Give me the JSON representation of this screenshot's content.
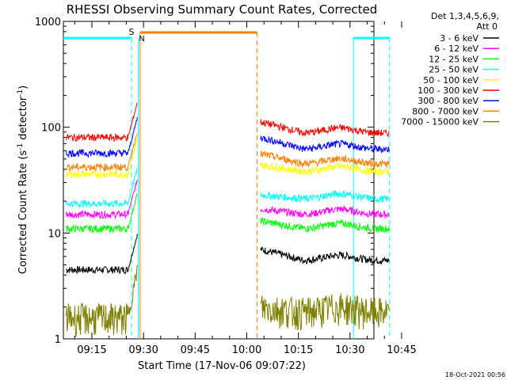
{
  "chart_data": {
    "type": "line",
    "title": "RHESSI Observing Summary Count Rates, Corrected",
    "xlabel": "Start Time (17-Nov-06 09:07:22)",
    "ylabel_main": "Corrected Count Rate (s",
    "ylabel_sup1": "-1",
    "ylabel_mid": " detector",
    "ylabel_sup2": "-1",
    "ylabel_end": ")",
    "y_scale": "log",
    "ylim": [
      1,
      1000
    ],
    "x_range_minutes": [
      7,
      100
    ],
    "x_ticks": [
      {
        "label": "09:15",
        "min": 15
      },
      {
        "label": "09:30",
        "min": 30
      },
      {
        "label": "09:45",
        "min": 45
      },
      {
        "label": "10:00",
        "min": 60
      },
      {
        "label": "10:15",
        "min": 75
      },
      {
        "label": "10:30",
        "min": 90
      },
      {
        "label": "10:45",
        "min": 105
      }
    ],
    "y_ticks": [
      {
        "label": "1",
        "value": 1
      },
      {
        "label": "10",
        "value": 10
      },
      {
        "label": "100",
        "value": 100
      },
      {
        "label": "1000",
        "value": 1000
      }
    ],
    "legend_header": [
      "Det 1,3,4,5,6,9,",
      "Att 0"
    ],
    "legend_position": "top-right",
    "series": [
      {
        "name": "3 - 6 keV",
        "color": "#000000",
        "pre": 4.5,
        "post": 5.5,
        "postStart": 7
      },
      {
        "name": "6 - 12 keV",
        "color": "#ff00ff",
        "pre": 15,
        "post": 15,
        "postStart": 17
      },
      {
        "name": "12 - 25 keV",
        "color": "#00ff00",
        "pre": 11,
        "post": 11,
        "postStart": 13
      },
      {
        "name": "25 - 50 keV",
        "color": "#00ffff",
        "pre": 19,
        "post": 21,
        "postStart": 23
      },
      {
        "name": "50 - 100 keV",
        "color": "#ffff00",
        "pre": 36,
        "post": 38,
        "postStart": 44
      },
      {
        "name": "100 - 300 keV",
        "color": "#ff0000",
        "pre": 80,
        "post": 88,
        "postStart": 112
      },
      {
        "name": "300 - 800 keV",
        "color": "#0000ff",
        "pre": 57,
        "post": 62,
        "postStart": 80
      },
      {
        "name": "800 - 7000 keV",
        "color": "#ff8000",
        "pre": 42,
        "post": 45,
        "postStart": 56
      },
      {
        "name": "7000 - 15000 keV",
        "color": "#808000",
        "pre": 1.6,
        "post": 1.8,
        "postStart": 2
      }
    ],
    "flags": {
      "saa_label": "S",
      "night_label": "N",
      "daylight_color": "#00ffff",
      "saa_color": "#ff8000"
    }
  },
  "footer": {
    "timestamp": "18-Oct-2021 00:56"
  }
}
